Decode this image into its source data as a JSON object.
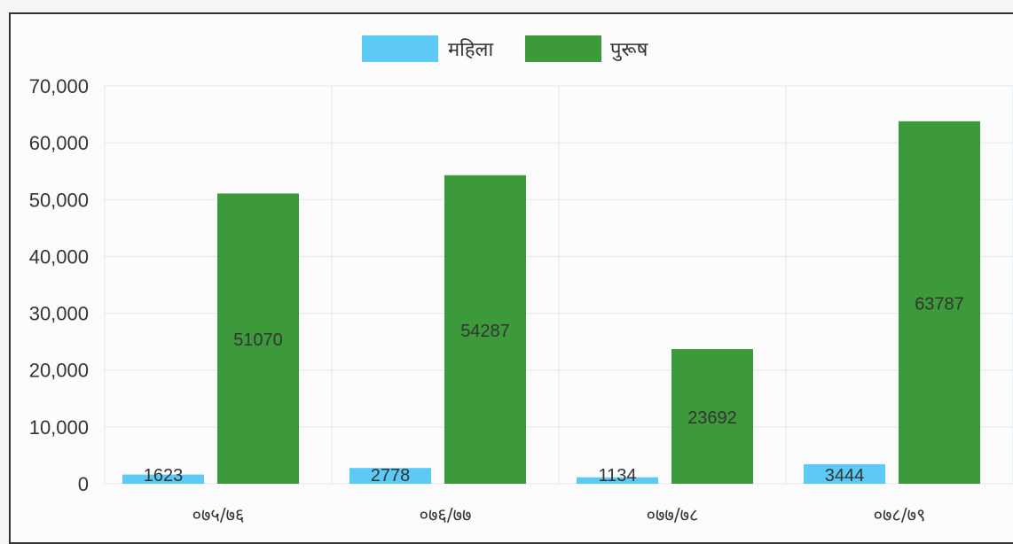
{
  "chart_data": {
    "type": "bar",
    "categories": [
      "०७५/७६",
      "०७६/७७",
      "०७७/७८",
      "०७८/७९"
    ],
    "series": [
      {
        "name": "महिला",
        "values": [
          1623,
          2778,
          1134,
          3444
        ],
        "color": "#5ccaf5"
      },
      {
        "name": "पुरूष",
        "values": [
          51070,
          54287,
          23692,
          63787
        ],
        "color": "#3d9a3a"
      }
    ],
    "ylim": [
      0,
      70000
    ],
    "yticks": [
      0,
      10000,
      20000,
      30000,
      40000,
      50000,
      60000,
      70000
    ],
    "ytick_labels": [
      "0",
      "10,000",
      "20,000",
      "30,000",
      "40,000",
      "50,000",
      "60,000",
      "70,000"
    ],
    "legend_position": "top-center",
    "grid": true
  }
}
